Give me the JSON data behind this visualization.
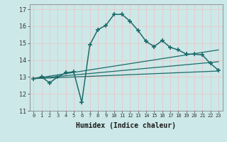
{
  "title": "",
  "xlabel": "Humidex (Indice chaleur)",
  "ylabel": "",
  "background_color": "#cce8e8",
  "line_color": "#1e6b6b",
  "grid_color": "#b0d8d8",
  "xlim": [
    -0.5,
    23.5
  ],
  "ylim": [
    11,
    17.3
  ],
  "yticks": [
    11,
    12,
    13,
    14,
    15,
    16,
    17
  ],
  "xticks": [
    0,
    1,
    2,
    3,
    4,
    5,
    6,
    7,
    8,
    9,
    10,
    11,
    12,
    13,
    14,
    15,
    16,
    17,
    18,
    19,
    20,
    21,
    22,
    23
  ],
  "main_line_x": [
    0,
    1,
    2,
    3,
    4,
    5,
    6,
    7,
    8,
    9,
    10,
    11,
    12,
    13,
    14,
    15,
    16,
    17,
    18,
    19,
    20,
    21,
    22,
    23
  ],
  "main_line_y": [
    12.9,
    13.0,
    12.65,
    13.0,
    13.25,
    13.3,
    11.5,
    14.9,
    15.8,
    16.05,
    16.7,
    16.7,
    16.3,
    15.75,
    15.1,
    14.8,
    15.15,
    14.75,
    14.6,
    14.35,
    14.35,
    14.3,
    13.8,
    13.4
  ],
  "trend_lines": [
    {
      "x": [
        0,
        23
      ],
      "y": [
        12.9,
        13.35
      ]
    },
    {
      "x": [
        0,
        23
      ],
      "y": [
        12.9,
        14.6
      ]
    },
    {
      "x": [
        0,
        23
      ],
      "y": [
        12.9,
        13.9
      ]
    }
  ]
}
